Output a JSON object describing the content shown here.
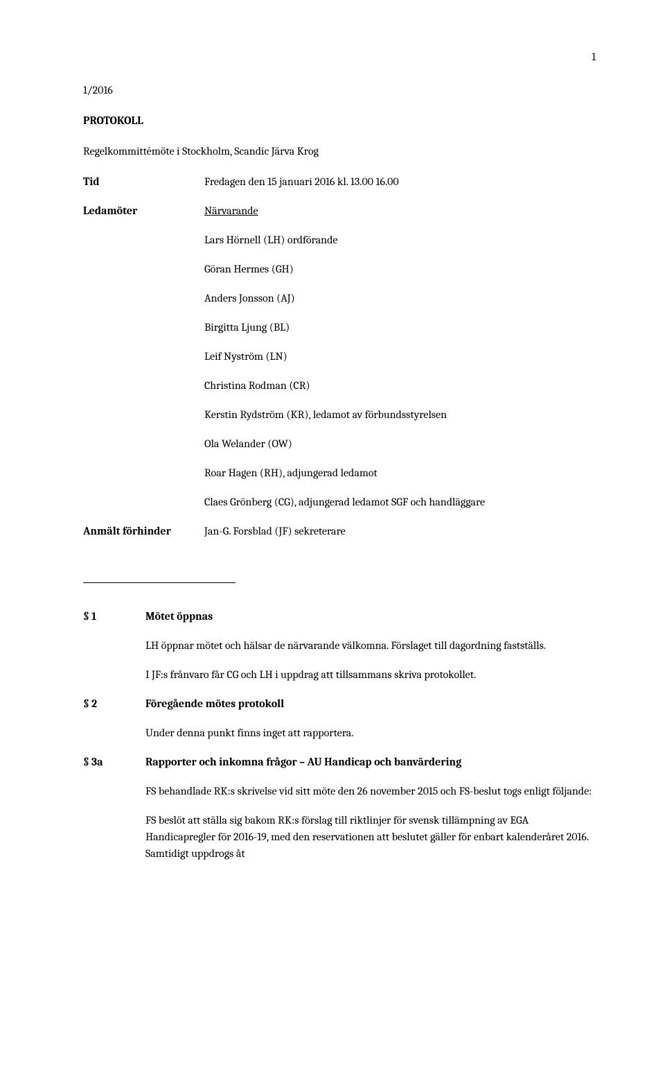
{
  "page_number": "1",
  "doc_ref": "1/2016",
  "doc_title": "PROTOKOLL",
  "meeting_line": "Regelkommittémöte i Stockholm, Scandic Järva Krog",
  "tid": {
    "label": "Tid",
    "value": "Fredagen den 15 januari 2016 kl. 13.00 16.00"
  },
  "ledamoter": {
    "label": "Ledamöter",
    "heading": "Närvarande",
    "list": [
      "Lars Hörnell (LH) ordförande",
      "Göran Hermes (GH)",
      "Anders Jonsson (AJ)",
      "Birgitta Ljung (BL)",
      "Leif Nyström (LN)",
      "Christina Rodman (CR)",
      "Kerstin Rydström (KR), ledamot av förbundsstyrelsen",
      "Ola Welander (OW)",
      "Roar Hagen (RH), adjungerad ledamot",
      "Claes Grönberg (CG), adjungerad ledamot SGF och handläggare"
    ]
  },
  "forhinder": {
    "label": "Anmält förhinder",
    "value": "Jan-G. Forsblad (JF) sekreterare"
  },
  "sections": [
    {
      "num": "§ 1",
      "title": "Mötet öppnas",
      "paras": [
        "LH öppnar mötet och hälsar de närvarande välkomna. Förslaget till dagordning fastställs.",
        "I JF:s frånvaro får CG och LH i uppdrag att tillsammans skriva protokollet."
      ]
    },
    {
      "num": "§ 2",
      "title": "Föregående mötes protokoll",
      "paras": [
        "Under denna punkt finns inget att rapportera."
      ]
    },
    {
      "num": "§ 3a",
      "title": "Rapporter och inkomna frågor – AU Handicap och banvärdering",
      "paras": [
        "FS behandlade RK:s skrivelse vid sitt möte den 26 november 2015 och FS-beslut togs enligt följande:",
        "FS beslöt att ställa sig bakom RK:s förslag till riktlinjer för svensk tillämpning av EGA Handicapregler för 2016-19, med den reservationen att beslutet gäller för enbart kalenderåret 2016. Samtidigt uppdrogs åt"
      ]
    }
  ]
}
